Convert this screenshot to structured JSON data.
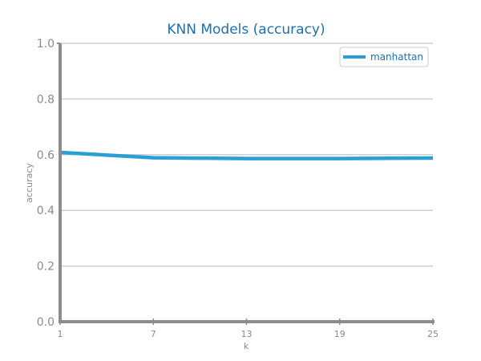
{
  "chart_data": {
    "type": "line",
    "title": "KNN Models (accuracy)",
    "xlabel": "k",
    "ylabel": "accuracy",
    "x": [
      1,
      7,
      13,
      19,
      25
    ],
    "xticks": [
      "1",
      "7",
      "13",
      "19",
      "25"
    ],
    "yticks": [
      "0.0",
      "0.2",
      "0.4",
      "0.6",
      "0.8",
      "1.0"
    ],
    "xlim": [
      1,
      25
    ],
    "ylim": [
      0,
      1
    ],
    "grid": "horizontal",
    "legend_position": "top-right",
    "series": [
      {
        "name": "manhattan",
        "values": [
          0.608,
          0.589,
          0.586,
          0.586,
          0.588
        ],
        "color": "#2a9fd6"
      }
    ],
    "colors": {
      "title": "#1f6fad",
      "axis": "#8c8c8c",
      "grid": "#cfcfcf",
      "legend_text": "#1f6fad"
    }
  }
}
